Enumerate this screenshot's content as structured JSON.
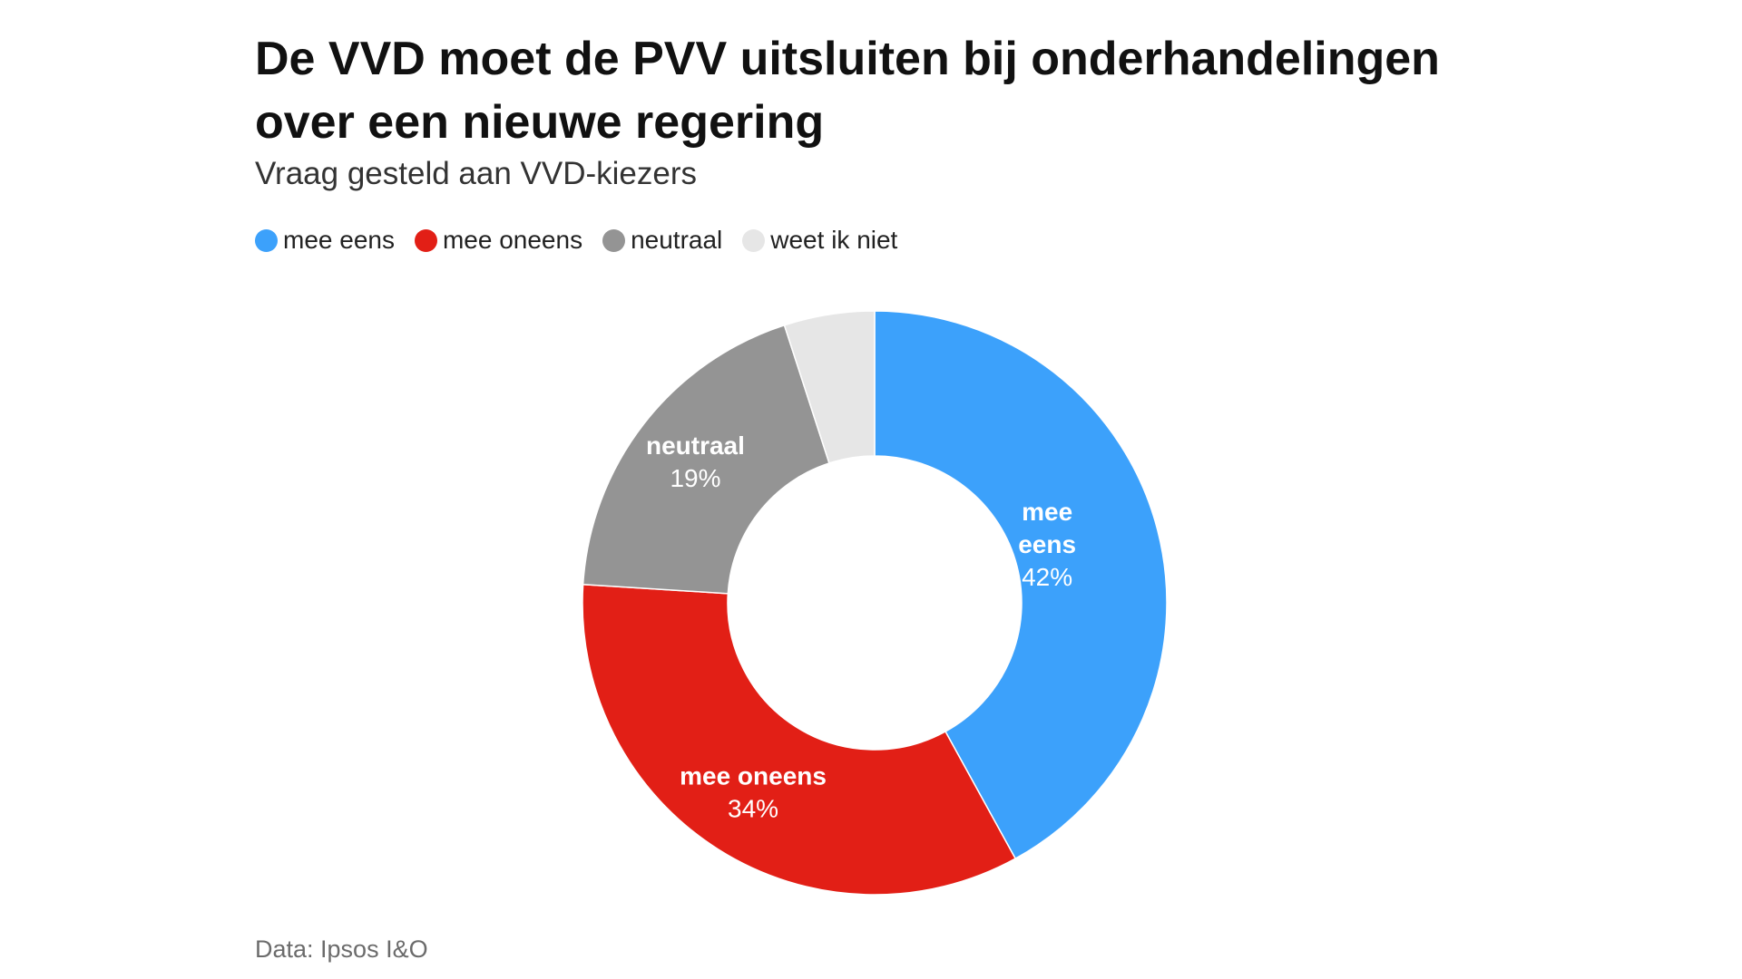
{
  "chart_data": {
    "type": "pie",
    "title": "De VVD moet de PVV uitsluiten bij onderhandelingen over een nieuwe regering",
    "subtitle": "Vraag gesteld aan VVD-kiezers",
    "categories": [
      "mee eens",
      "mee oneens",
      "neutraal",
      "weet ik niet"
    ],
    "values": [
      42,
      34,
      19,
      5
    ],
    "value_labels": [
      "42%",
      "34%",
      "19%",
      ""
    ],
    "slice_label_lines": [
      [
        "mee",
        "eens"
      ],
      [
        "mee oneens"
      ],
      [
        "neutraal"
      ],
      []
    ],
    "colors": [
      "#3ca1fb",
      "#e21f16",
      "#949494",
      "#e6e6e6"
    ],
    "legend_position": "top-left",
    "donut": true,
    "source": "Data: Ipsos I&O"
  }
}
